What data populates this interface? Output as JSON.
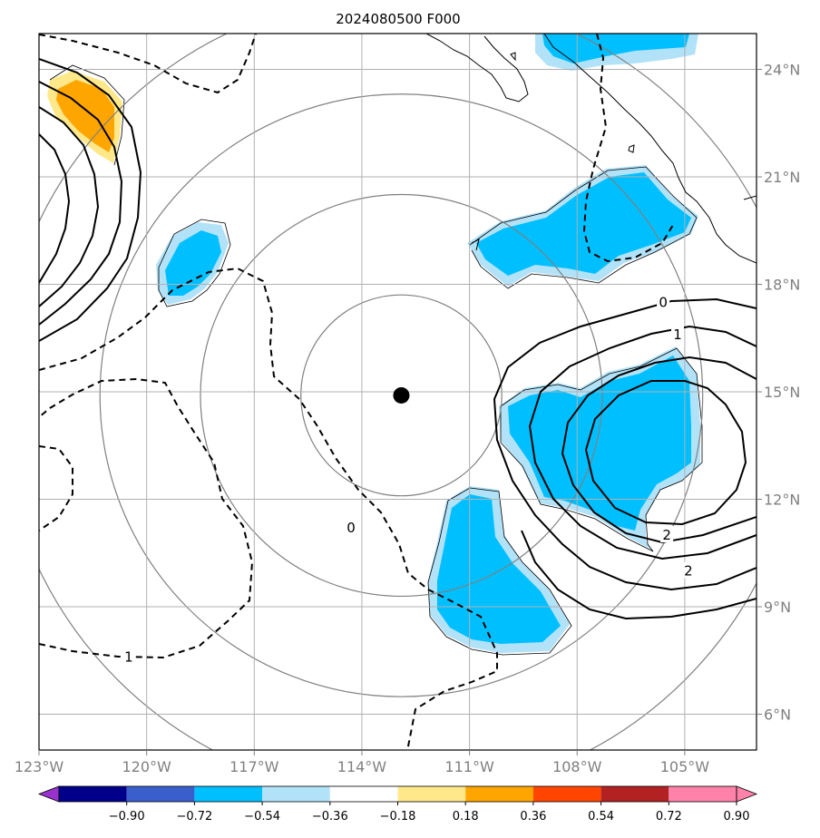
{
  "chart_data": {
    "type": "contour_map",
    "title": "2024080500 F000",
    "x_axis": {
      "ticks": [
        {
          "value": -123,
          "label": "123°W"
        },
        {
          "value": -120,
          "label": "120°W"
        },
        {
          "value": -117,
          "label": "117°W"
        },
        {
          "value": -114,
          "label": "114°W"
        },
        {
          "value": -111,
          "label": "111°W"
        },
        {
          "value": -108,
          "label": "108°W"
        },
        {
          "value": -105,
          "label": "105°W"
        }
      ],
      "range": [
        -123,
        -103
      ]
    },
    "y_axis": {
      "ticks": [
        {
          "value": 6,
          "label": "6°N"
        },
        {
          "value": 9,
          "label": "9°N"
        },
        {
          "value": 12,
          "label": "12°N"
        },
        {
          "value": 15,
          "label": "15°N"
        },
        {
          "value": 18,
          "label": "18°N"
        },
        {
          "value": 21,
          "label": "21°N"
        },
        {
          "value": 24,
          "label": "24°N"
        }
      ],
      "range": [
        5,
        25
      ]
    },
    "center": {
      "lon": -112.9,
      "lat": 14.9
    },
    "range_rings_deg": [
      2.8,
      5.6,
      8.4,
      11.2
    ],
    "contour_labels": [
      {
        "text": "0",
        "lon": -114.3,
        "lat": 11.2
      },
      {
        "text": "0",
        "lon": -105.6,
        "lat": 17.5
      },
      {
        "text": "1",
        "lon": -105.2,
        "lat": 16.6
      },
      {
        "text": "1",
        "lon": -120.5,
        "lat": 7.6
      },
      {
        "text": "2",
        "lon": -105.5,
        "lat": 11.0
      },
      {
        "text": "2",
        "lon": -104.9,
        "lat": 10.0
      }
    ],
    "colorbar": {
      "ticks": [
        "−0.90",
        "−0.72",
        "−0.54",
        "−0.36",
        "−0.18",
        "0.18",
        "0.36",
        "0.54",
        "0.72",
        "0.90"
      ],
      "colors": [
        "#9932cc",
        "#00008b",
        "#3a5fcd",
        "#00bfff",
        "#b2e2f8",
        "#ffffff",
        "#ffe88a",
        "#ffa500",
        "#ff4500",
        "#b22222",
        "#ff82ab",
        "#ff82ab"
      ]
    },
    "shading": {
      "negative_fill": "#00bfff",
      "negative_light": "#b2e2f8",
      "positive_fill": "#ffa500",
      "positive_light": "#ffe88a"
    }
  }
}
